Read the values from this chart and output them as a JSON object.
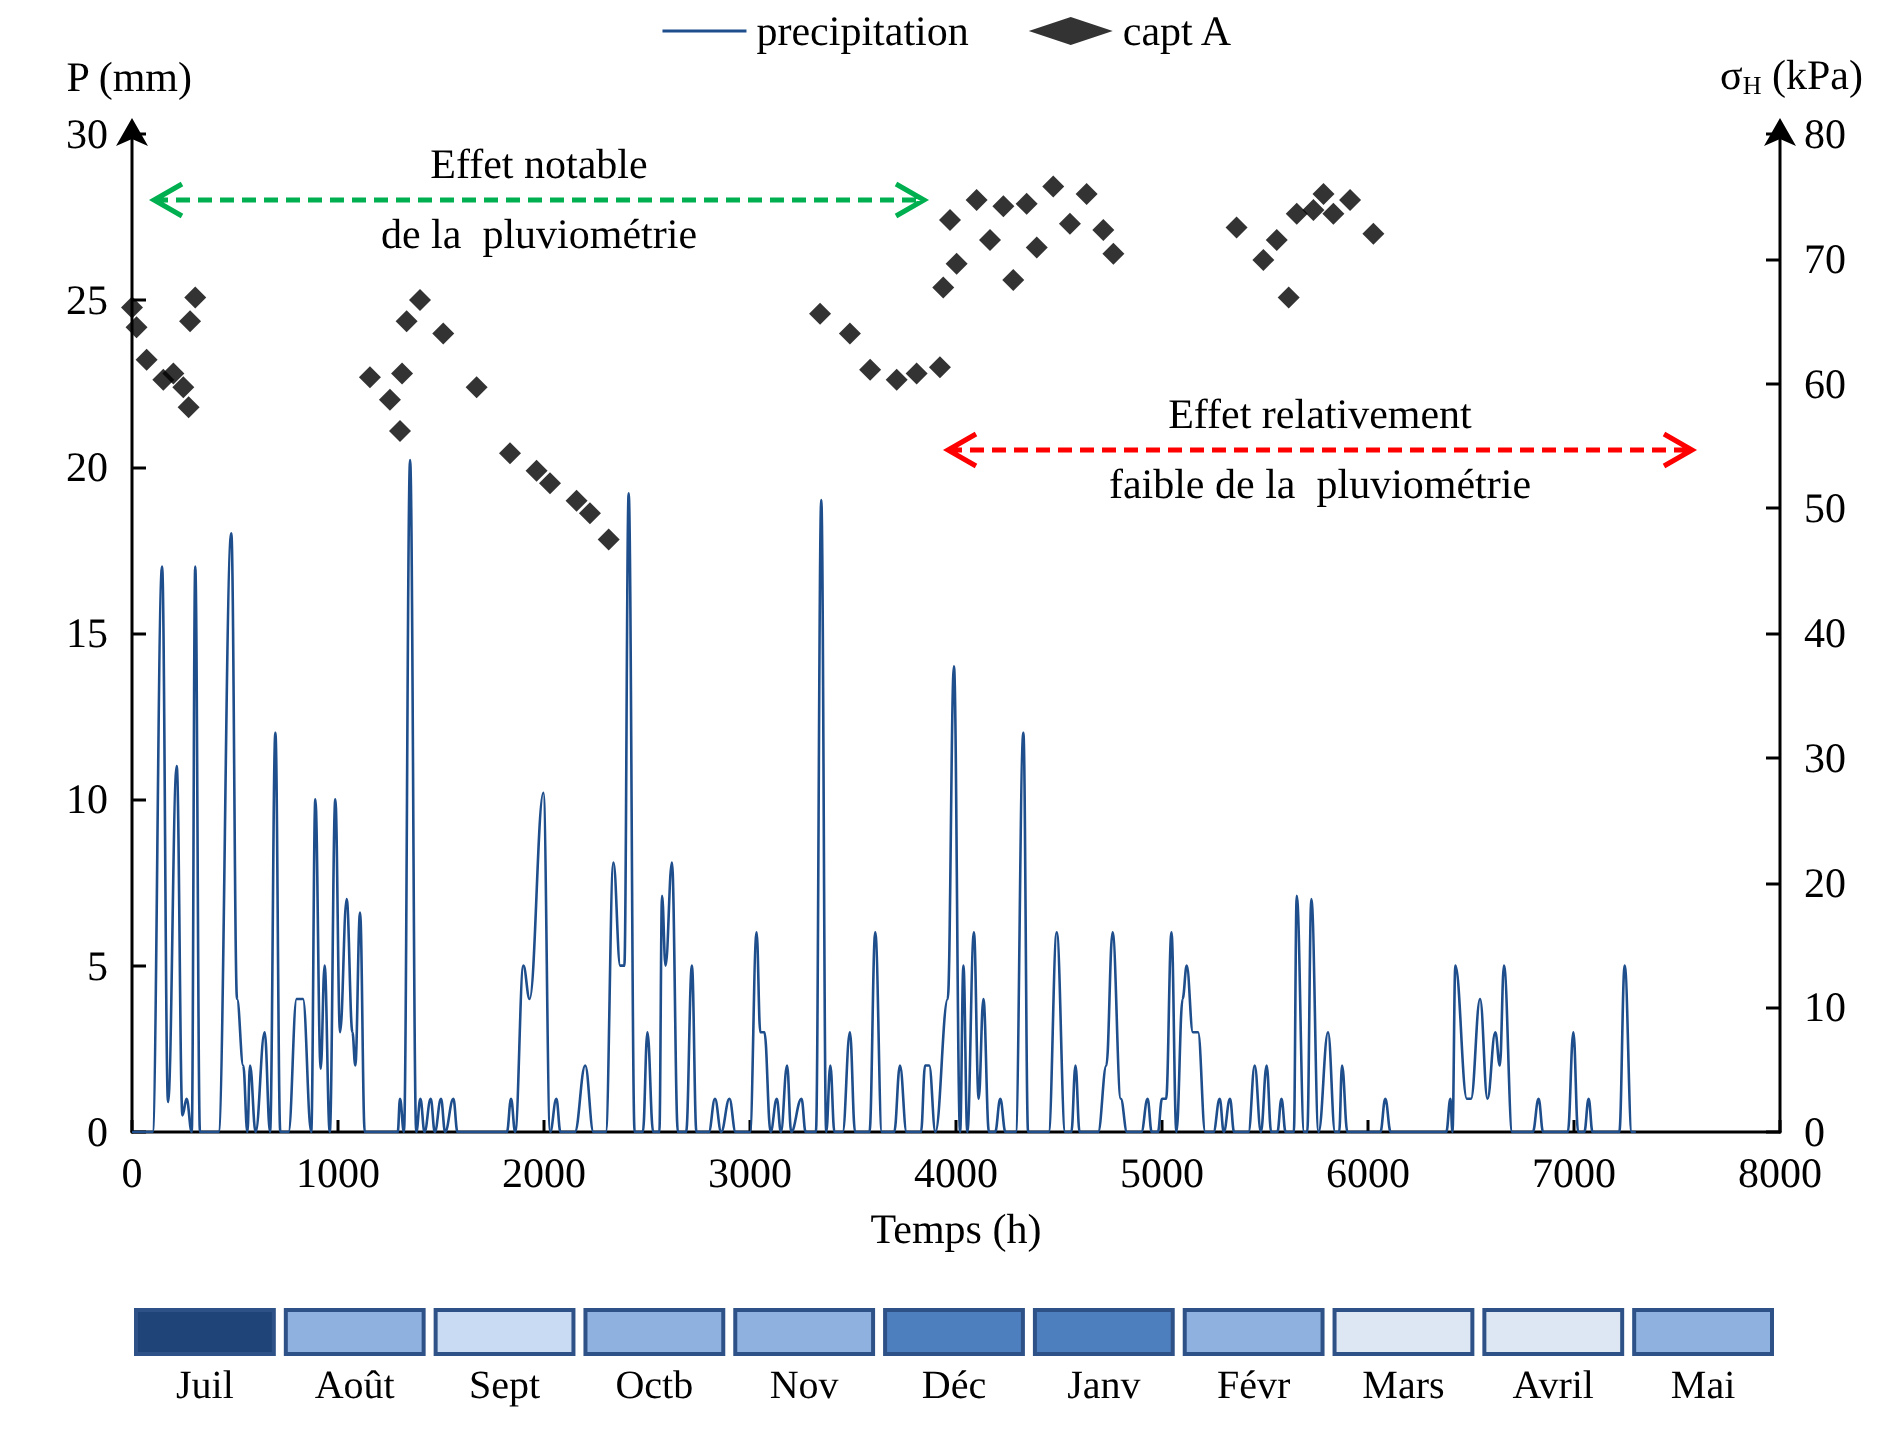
{
  "chart_data": {
    "type": "line",
    "xlabel": "Temps (h)",
    "ylabel": "P (mm)",
    "y2label": "σ$_{H}$ (kPa)",
    "xlim": [
      0,
      8000
    ],
    "xticks": [
      0,
      1000,
      2000,
      3000,
      4000,
      5000,
      6000,
      7000,
      8000
    ],
    "ylim": [
      0,
      30
    ],
    "yticks": [
      0,
      5,
      10,
      15,
      20,
      25,
      30
    ],
    "y2lim": [
      0,
      80
    ],
    "y2ticks": [
      0,
      10,
      20,
      30,
      40,
      50,
      60,
      70,
      80
    ],
    "grid": false,
    "legend": "top",
    "series": [
      {
        "name": "precipitation",
        "color": "#1f4e8c",
        "marker": "none",
        "line_style": "solid",
        "x": [
          0,
          100,
          146,
          175,
          217,
          245,
          265,
          290,
          307,
          330,
          420,
          482,
          510,
          540,
          560,
          573,
          600,
          644,
          670,
          696,
          720,
          760,
          799,
          830,
          870,
          890,
          916,
          935,
          960,
          987,
          1010,
          1042,
          1070,
          1084,
          1107,
          1130,
          1290,
          1301,
          1320,
          1350,
          1380,
          1400,
          1420,
          1450,
          1470,
          1500,
          1520,
          1560,
          1580,
          1820,
          1840,
          1860,
          1900,
          1930,
          1997,
          2030,
          2060,
          2080,
          2150,
          2200,
          2240,
          2300,
          2337,
          2370,
          2390,
          2411,
          2440,
          2480,
          2502,
          2530,
          2560,
          2573,
          2590,
          2621,
          2650,
          2690,
          2718,
          2740,
          2800,
          2830,
          2860,
          2900,
          2930,
          3000,
          3032,
          3050,
          3070,
          3100,
          3130,
          3150,
          3180,
          3200,
          3250,
          3270,
          3320,
          3346,
          3370,
          3390,
          3410,
          3450,
          3485,
          3510,
          3580,
          3608,
          3640,
          3700,
          3728,
          3760,
          3830,
          3850,
          3870,
          3900,
          3960,
          3990,
          4020,
          4036,
          4055,
          4087,
          4110,
          4133,
          4160,
          4190,
          4215,
          4240,
          4290,
          4327,
          4350,
          4450,
          4489,
          4530,
          4560,
          4580,
          4600,
          4690,
          4730,
          4760,
          4800,
          4830,
          4900,
          4930,
          4950,
          4980,
          5000,
          5020,
          5046,
          5070,
          5100,
          5120,
          5150,
          5175,
          5210,
          5250,
          5280,
          5300,
          5330,
          5350,
          5420,
          5450,
          5480,
          5508,
          5530,
          5560,
          5580,
          5600,
          5640,
          5654,
          5690,
          5705,
          5725,
          5760,
          5806,
          5840,
          5860,
          5874,
          5900,
          6060,
          6084,
          6110,
          6380,
          6400,
          6410,
          6424,
          6480,
          6500,
          6544,
          6580,
          6618,
          6640,
          6660,
          6700,
          6800,
          6828,
          6850,
          6970,
          6997,
          7020,
          7050,
          7071,
          7090,
          7220,
          7246,
          7280,
          7300
        ],
        "values": [
          0,
          0,
          17,
          0.9,
          11,
          0.5,
          1,
          0,
          17,
          0,
          0,
          18,
          4,
          2,
          0,
          2,
          0,
          3,
          0,
          12,
          0,
          0,
          4,
          4,
          0,
          10,
          1.9,
          5,
          0,
          10,
          3,
          7,
          3,
          2,
          6.6,
          0,
          0,
          1,
          0,
          20.2,
          0,
          1,
          0,
          1,
          0,
          1,
          0,
          1,
          0,
          0,
          1,
          0,
          5,
          4,
          10.2,
          0,
          1,
          0,
          0,
          2,
          0,
          0,
          8.1,
          5,
          5,
          19.2,
          0,
          0,
          3,
          0,
          0,
          7.1,
          5,
          8.1,
          0,
          0,
          5,
          0,
          0,
          1,
          0,
          1,
          0,
          0,
          6,
          3,
          3,
          0,
          1,
          0,
          2,
          0,
          1,
          0,
          0,
          19,
          0,
          2,
          0,
          0,
          3,
          0,
          0,
          6,
          0,
          0,
          2,
          0,
          0,
          2,
          2,
          0,
          4,
          14,
          0,
          5,
          0,
          6,
          1,
          4,
          0,
          0,
          1,
          0,
          0,
          12,
          0,
          0,
          6,
          0,
          0,
          2,
          0,
          0,
          2,
          6,
          1,
          0,
          0,
          1,
          0,
          0,
          1,
          1,
          6,
          0,
          4,
          5,
          3,
          3,
          0,
          0,
          1,
          0,
          1,
          0,
          0,
          2,
          0,
          2,
          0,
          0,
          1,
          0,
          0,
          7.1,
          0,
          0,
          7,
          0,
          3,
          0,
          0,
          2,
          0,
          0,
          1,
          0,
          0,
          1,
          0,
          5,
          1,
          1,
          4,
          1,
          3,
          2,
          5,
          0,
          0,
          1,
          0,
          0,
          3,
          0,
          0,
          1,
          0,
          0,
          5,
          0,
          0
        ]
      },
      {
        "name": "capt A",
        "type": "scatter",
        "axis": "y2",
        "color": "#000000",
        "marker": "diamond",
        "x": [
          0,
          22,
          71,
          152,
          201,
          249,
          275,
          282,
          307,
          1155,
          1252,
          1301,
          1311,
          1333,
          1398,
          1511,
          1673,
          1835,
          1964,
          2029,
          2158,
          2223,
          2314,
          3340,
          3485,
          3583,
          3712,
          3809,
          3922,
          3938,
          3971,
          4003,
          4100,
          4165,
          4230,
          4278,
          4343,
          4392,
          4472,
          4553,
          4634,
          4715,
          4764,
          5362,
          5492,
          5557,
          5615,
          5654,
          5735,
          5784,
          5832,
          5913,
          6026
        ],
        "values": [
          66.1,
          64.5,
          61.9,
          60.3,
          60.8,
          59.7,
          58.1,
          65,
          66.9,
          60.5,
          58.7,
          56.2,
          60.8,
          65,
          66.7,
          64,
          59.7,
          54.4,
          53,
          52,
          50.6,
          49.6,
          47.5,
          65.6,
          64,
          61.1,
          60.3,
          60.8,
          61.3,
          67.7,
          73.1,
          69.6,
          74.7,
          71.5,
          74.2,
          68.3,
          74.4,
          70.9,
          75.8,
          72.8,
          75.2,
          72.3,
          70.4,
          72.5,
          69.9,
          71.5,
          66.9,
          73.6,
          73.9,
          75.2,
          73.6,
          74.7,
          72
        ]
      }
    ],
    "annotations": [
      "Effet notable\nde la  pluviométrie",
      "Effet relativement\nfaible de la  pluviométrie",
      "Juil",
      "Août",
      "Sept",
      "Octb",
      "Nov",
      "Déc",
      "Janv",
      "Févr",
      "Mars",
      "Avril",
      "Mai"
    ]
  }
}
